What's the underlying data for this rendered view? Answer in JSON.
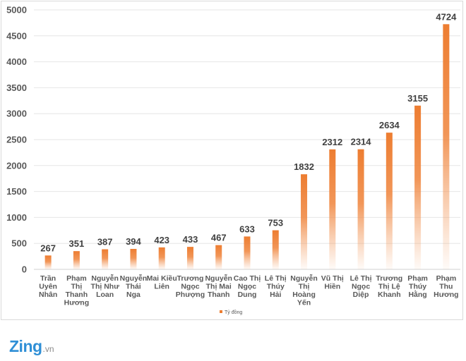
{
  "chart_data": {
    "type": "bar",
    "title": "",
    "xlabel": "",
    "ylabel": "",
    "ylim": [
      0,
      5000
    ],
    "yticks": [
      0,
      500,
      1000,
      1500,
      2000,
      2500,
      3000,
      3500,
      4000,
      4500,
      5000
    ],
    "grid": true,
    "legend_position": "bottom",
    "bar_color": "#ed7d31",
    "categories": [
      [
        "Trần",
        "Uyên",
        "Nhân"
      ],
      [
        "Phạm",
        "Thị",
        "Thanh",
        "Hương"
      ],
      [
        "Nguyễn",
        "Thị Như",
        "Loan"
      ],
      [
        "Nguyễn",
        "Thái",
        "Nga"
      ],
      [
        "Mai Kiều",
        "Liên"
      ],
      [
        "Trương",
        "Ngọc",
        "Phượng"
      ],
      [
        "Nguyễn",
        "Thị Mai",
        "Thanh"
      ],
      [
        "Cao Thị",
        "Ngọc",
        "Dung"
      ],
      [
        "Lê Thị",
        "Thúy",
        "Hải"
      ],
      [
        "Nguyễn",
        "Thị",
        "Hoàng",
        "Yến"
      ],
      [
        "Vũ Thị",
        "Hiền"
      ],
      [
        "Lê Thị",
        "Ngọc",
        "Diệp"
      ],
      [
        "Trương",
        "Thị Lệ",
        "Khanh"
      ],
      [
        "Phạm",
        "Thúy",
        "Hằng"
      ],
      [
        "Phạm",
        "Thu",
        "Hương"
      ]
    ],
    "series": [
      {
        "name": "Tỷ đồng",
        "values": [
          267,
          351,
          387,
          394,
          423,
          433,
          467,
          633,
          753,
          1832,
          2312,
          2314,
          2634,
          3155,
          4724
        ]
      }
    ]
  },
  "branding": {
    "logo_main": "Zing",
    "logo_suffix": ".vn"
  }
}
